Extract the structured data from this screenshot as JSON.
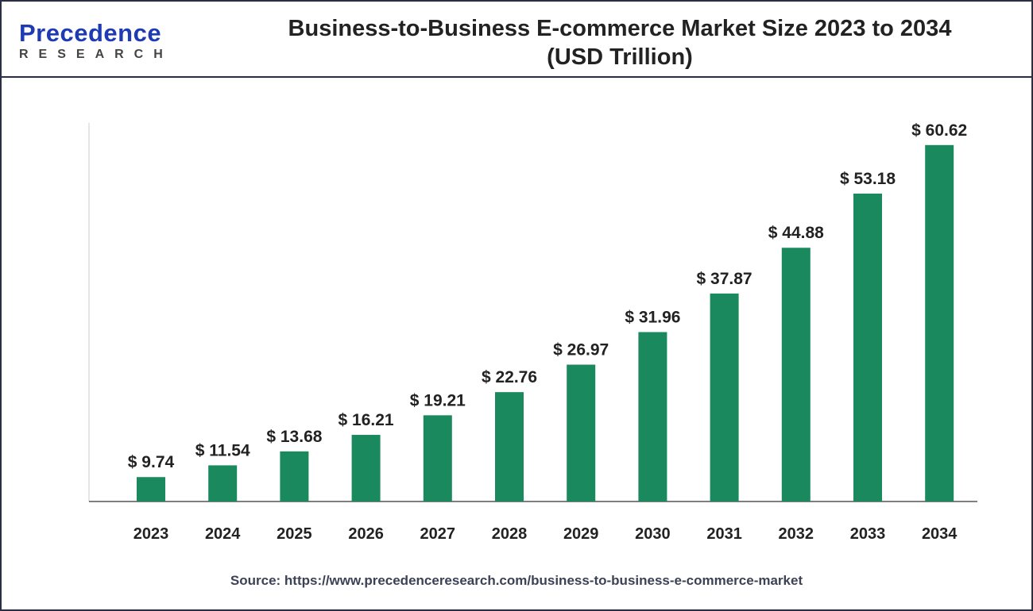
{
  "brand": {
    "name_main": "Precedence",
    "name_sub": "RESEARCH"
  },
  "chart_data": {
    "type": "bar",
    "title": "Business-to-Business E-commerce Market Size 2023 to 2034",
    "subtitle": "(USD Trillion)",
    "categories": [
      "2023",
      "2024",
      "2025",
      "2026",
      "2027",
      "2028",
      "2029",
      "2030",
      "2031",
      "2032",
      "2033",
      "2034"
    ],
    "values": [
      9.74,
      11.54,
      13.68,
      16.21,
      19.21,
      22.76,
      26.97,
      31.96,
      37.87,
      44.88,
      53.18,
      60.62
    ],
    "data_labels": [
      "$ 9.74",
      "$ 11.54",
      "$ 13.68",
      "$ 16.21",
      "$ 19.21",
      "$ 22.76",
      "$ 26.97",
      "$ 31.96",
      "$ 37.87",
      "$ 44.88",
      "$ 53.18",
      "$ 60.62"
    ],
    "xlabel": "",
    "ylabel": "",
    "ylim": [
      6,
      64
    ],
    "grid": false,
    "bar_color": "#1a8a5e"
  },
  "source": "Source: https://www.precedenceresearch.com/business-to-business-e-commerce-market"
}
